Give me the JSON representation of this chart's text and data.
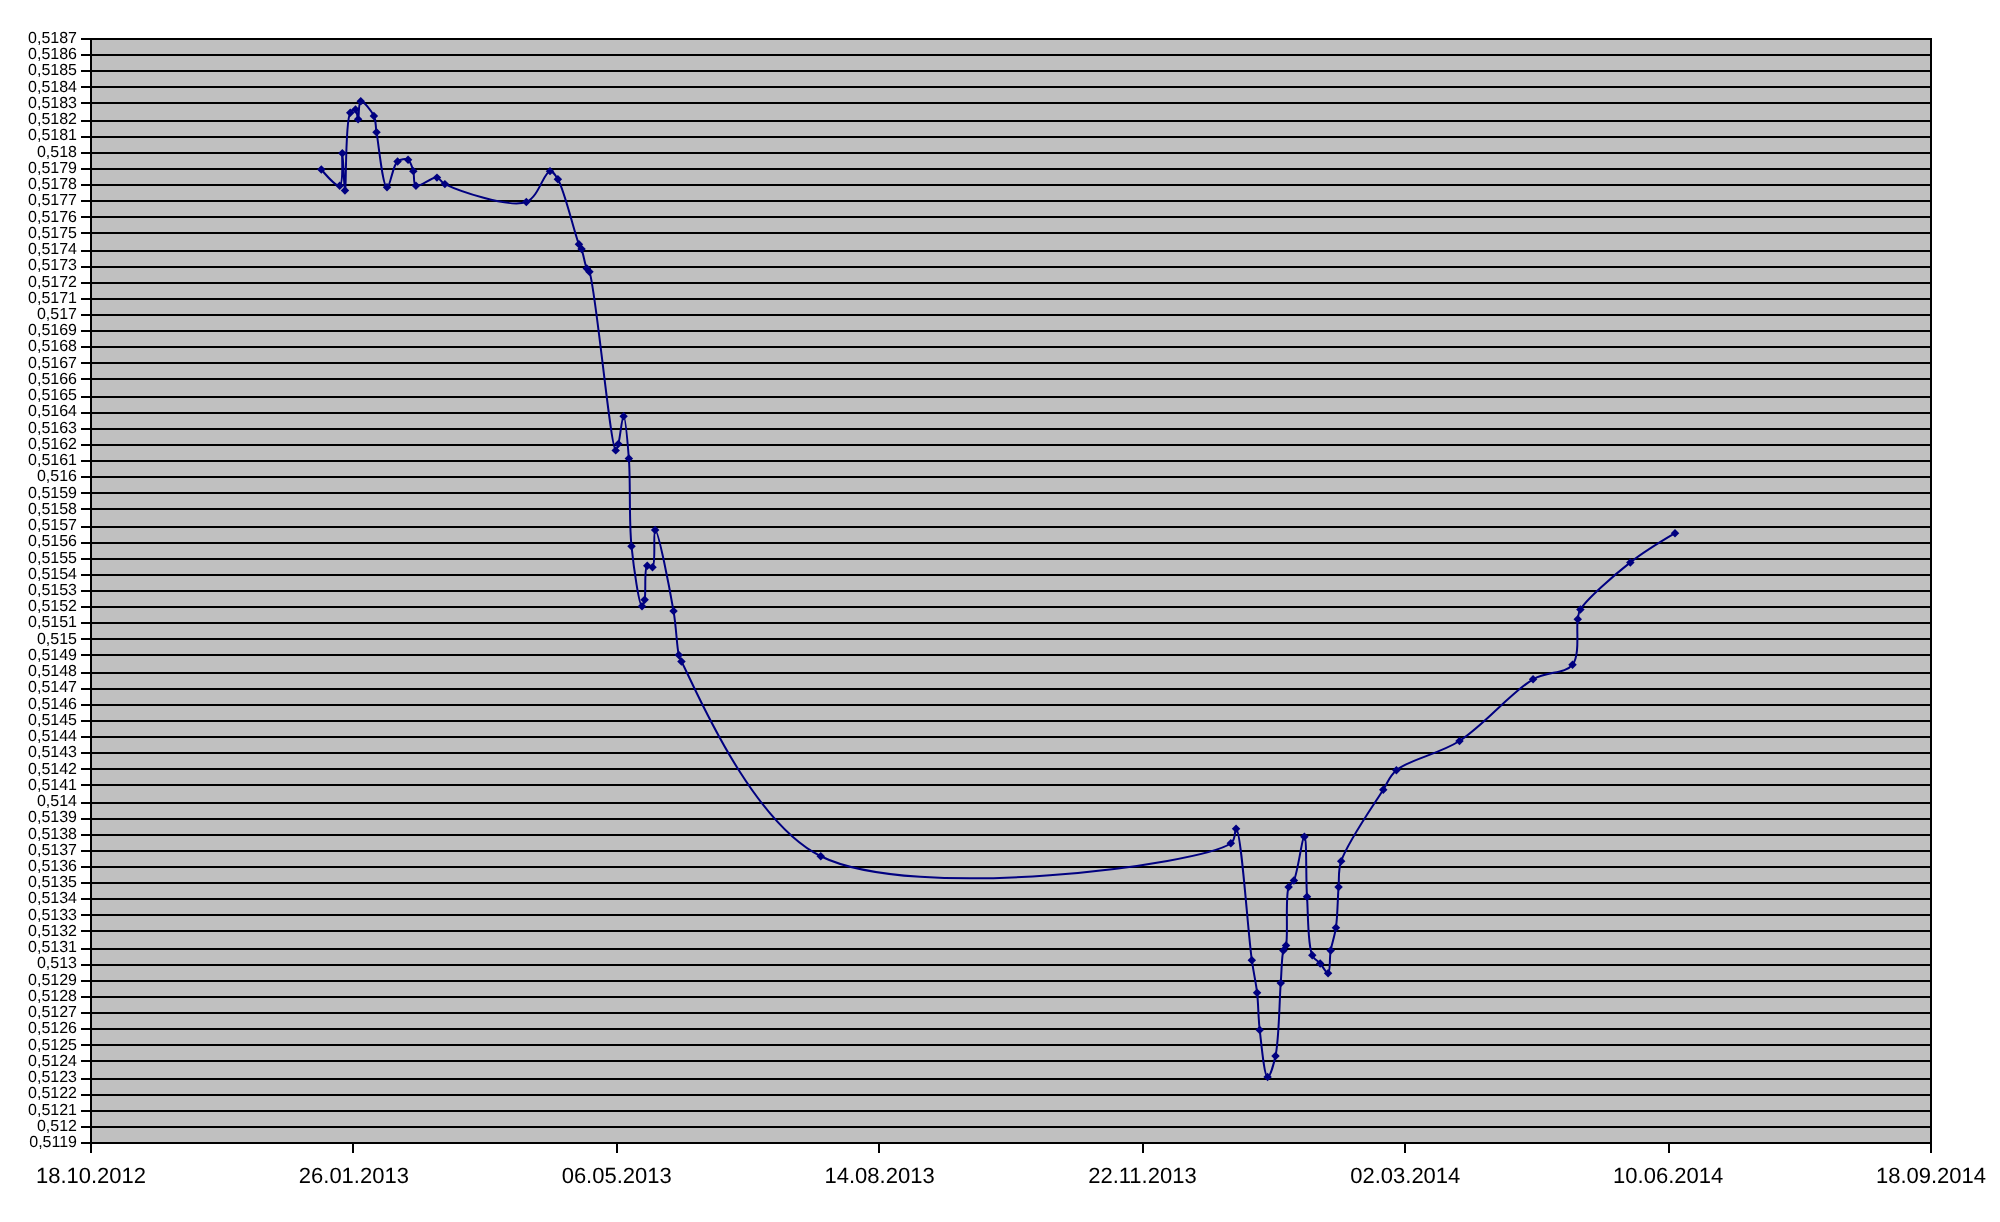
{
  "chart_data": {
    "type": "line",
    "marker": "diamond",
    "grid": "y",
    "x": [
      "2013-01-14",
      "2013-01-21",
      "2013-01-22",
      "2013-01-23",
      "2013-01-25",
      "2013-01-27",
      "2013-01-28",
      "2013-01-29",
      "2013-02-03",
      "2013-02-04",
      "2013-02-08",
      "2013-02-12",
      "2013-02-16",
      "2013-02-18",
      "2013-02-19",
      "2013-02-27",
      "2013-03-02",
      "2013-04-02",
      "2013-04-11",
      "2013-04-14",
      "2013-04-22",
      "2013-04-23",
      "2013-04-25",
      "2013-04-26",
      "2013-05-06",
      "2013-05-07",
      "2013-05-09",
      "2013-05-11",
      "2013-05-12",
      "2013-05-16",
      "2013-05-17",
      "2013-05-18",
      "2013-05-20",
      "2013-05-21",
      "2013-05-28",
      "2013-05-30",
      "2013-05-31",
      "2013-07-23",
      "2013-12-26",
      "2013-12-28",
      "2014-01-03",
      "2014-01-05",
      "2014-01-06",
      "2014-01-09",
      "2014-01-12",
      "2014-01-14",
      "2014-01-15",
      "2014-01-16",
      "2014-01-17",
      "2014-01-19",
      "2014-01-23",
      "2014-01-24",
      "2014-01-26",
      "2014-01-29",
      "2014-02-01",
      "2014-02-02",
      "2014-02-04",
      "2014-02-05",
      "2014-02-06",
      "2014-02-22",
      "2014-02-27",
      "2014-03-23",
      "2014-04-20",
      "2014-05-05",
      "2014-05-07",
      "2014-05-08",
      "2014-05-27",
      "2014-06-13"
    ],
    "series": [
      {
        "color": "#000080",
        "values": [
          0.51789,
          0.51779,
          0.51799,
          0.51776,
          0.51824,
          0.51826,
          0.5182,
          0.51831,
          0.51822,
          0.51812,
          0.51778,
          0.51794,
          0.51795,
          0.51788,
          0.51779,
          0.51784,
          0.5178,
          0.51769,
          0.51788,
          0.51783,
          0.51743,
          0.5174,
          0.51728,
          0.51726,
          0.51616,
          0.5162,
          0.51637,
          0.51611,
          0.51557,
          0.5152,
          0.51524,
          0.51545,
          0.51544,
          0.51567,
          0.51517,
          0.5149,
          0.51486,
          0.51366,
          0.51374,
          0.51383,
          0.51302,
          0.51282,
          0.51259,
          0.5123,
          0.51243,
          0.51288,
          0.51308,
          0.51311,
          0.51347,
          0.51351,
          0.51378,
          0.51341,
          0.51305,
          0.513,
          0.51294,
          0.51308,
          0.51322,
          0.51347,
          0.51363,
          0.51407,
          0.51419,
          0.51437,
          0.51475,
          0.51484,
          0.51512,
          0.51518,
          0.51547,
          0.51565
        ]
      }
    ],
    "xlim": [
      "2012-10-18",
      "2014-09-18"
    ],
    "xticks": [
      {
        "value": "2012-10-18",
        "label": "18.10.2012"
      },
      {
        "value": "2013-01-26",
        "label": "26.01.2013"
      },
      {
        "value": "2013-05-06",
        "label": "06.05.2013"
      },
      {
        "value": "2013-08-14",
        "label": "14.08.2013"
      },
      {
        "value": "2013-11-22",
        "label": "22.11.2013"
      },
      {
        "value": "2014-03-02",
        "label": "02.03.2014"
      },
      {
        "value": "2014-06-10",
        "label": "10.06.2014"
      },
      {
        "value": "2014-09-18",
        "label": "18.09.2014"
      }
    ],
    "ylim": [
      0.5119,
      0.5187
    ],
    "yticks": [
      {
        "value": 0.5119,
        "label": "0,5119"
      },
      {
        "value": 0.512,
        "label": "0,512"
      },
      {
        "value": 0.5121,
        "label": "0,5121"
      },
      {
        "value": 0.5122,
        "label": "0,5122"
      },
      {
        "value": 0.5123,
        "label": "0,5123"
      },
      {
        "value": 0.5124,
        "label": "0,5124"
      },
      {
        "value": 0.5125,
        "label": "0,5125"
      },
      {
        "value": 0.5126,
        "label": "0,5126"
      },
      {
        "value": 0.5127,
        "label": "0,5127"
      },
      {
        "value": 0.5128,
        "label": "0,5128"
      },
      {
        "value": 0.5129,
        "label": "0,5129"
      },
      {
        "value": 0.513,
        "label": "0,513"
      },
      {
        "value": 0.5131,
        "label": "0,5131"
      },
      {
        "value": 0.5132,
        "label": "0,5132"
      },
      {
        "value": 0.5133,
        "label": "0,5133"
      },
      {
        "value": 0.5134,
        "label": "0,5134"
      },
      {
        "value": 0.5135,
        "label": "0,5135"
      },
      {
        "value": 0.5136,
        "label": "0,5136"
      },
      {
        "value": 0.5137,
        "label": "0,5137"
      },
      {
        "value": 0.5138,
        "label": "0,5138"
      },
      {
        "value": 0.5139,
        "label": "0,5139"
      },
      {
        "value": 0.514,
        "label": "0,514"
      },
      {
        "value": 0.5141,
        "label": "0,5141"
      },
      {
        "value": 0.5142,
        "label": "0,5142"
      },
      {
        "value": 0.5143,
        "label": "0,5143"
      },
      {
        "value": 0.5144,
        "label": "0,5144"
      },
      {
        "value": 0.5145,
        "label": "0,5145"
      },
      {
        "value": 0.5146,
        "label": "0,5146"
      },
      {
        "value": 0.5147,
        "label": "0,5147"
      },
      {
        "value": 0.5148,
        "label": "0,5148"
      },
      {
        "value": 0.5149,
        "label": "0,5149"
      },
      {
        "value": 0.515,
        "label": "0,515"
      },
      {
        "value": 0.5151,
        "label": "0,5151"
      },
      {
        "value": 0.5152,
        "label": "0,5152"
      },
      {
        "value": 0.5153,
        "label": "0,5153"
      },
      {
        "value": 0.5154,
        "label": "0,5154"
      },
      {
        "value": 0.5155,
        "label": "0,5155"
      },
      {
        "value": 0.5156,
        "label": "0,5156"
      },
      {
        "value": 0.5157,
        "label": "0,5157"
      },
      {
        "value": 0.5158,
        "label": "0,5158"
      },
      {
        "value": 0.5159,
        "label": "0,5159"
      },
      {
        "value": 0.516,
        "label": "0,516"
      },
      {
        "value": 0.5161,
        "label": "0,5161"
      },
      {
        "value": 0.5162,
        "label": "0,5162"
      },
      {
        "value": 0.5163,
        "label": "0,5163"
      },
      {
        "value": 0.5164,
        "label": "0,5164"
      },
      {
        "value": 0.5165,
        "label": "0,5165"
      },
      {
        "value": 0.5166,
        "label": "0,5166"
      },
      {
        "value": 0.5167,
        "label": "0,5167"
      },
      {
        "value": 0.5168,
        "label": "0,5168"
      },
      {
        "value": 0.5169,
        "label": "0,5169"
      },
      {
        "value": 0.517,
        "label": "0,517"
      },
      {
        "value": 0.5171,
        "label": "0,5171"
      },
      {
        "value": 0.5172,
        "label": "0,5172"
      },
      {
        "value": 0.5173,
        "label": "0,5173"
      },
      {
        "value": 0.5174,
        "label": "0,5174"
      },
      {
        "value": 0.5175,
        "label": "0,5175"
      },
      {
        "value": 0.5176,
        "label": "0,5176"
      },
      {
        "value": 0.5177,
        "label": "0,5177"
      },
      {
        "value": 0.5178,
        "label": "0,5178"
      },
      {
        "value": 0.5179,
        "label": "0,5179"
      },
      {
        "value": 0.518,
        "label": "0,518"
      },
      {
        "value": 0.5181,
        "label": "0,5181"
      },
      {
        "value": 0.5182,
        "label": "0,5182"
      },
      {
        "value": 0.5183,
        "label": "0,5183"
      },
      {
        "value": 0.5184,
        "label": "0,5184"
      },
      {
        "value": 0.5185,
        "label": "0,5185"
      },
      {
        "value": 0.5186,
        "label": "0,5186"
      },
      {
        "value": 0.5187,
        "label": "0,5187"
      }
    ]
  }
}
